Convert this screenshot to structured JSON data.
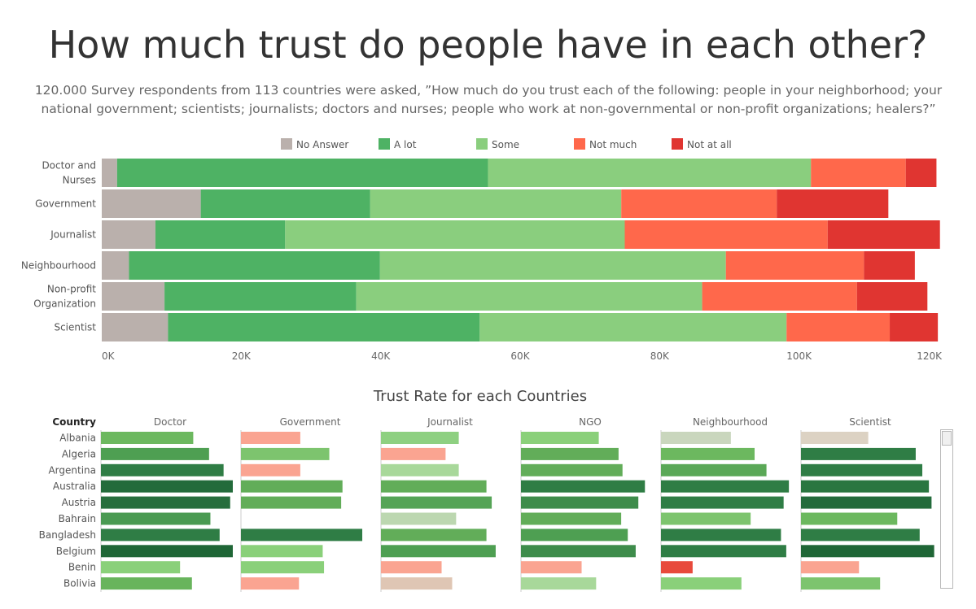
{
  "page": {
    "title": "How much trust do people have in each other?",
    "subtitle": "120.000 Survey respondents from 113 countries were asked, ”How much do you trust each of the following: people in your neighborhood; your national government; scientists; journalists; doctors and nurses; people who work at non-governmental or non-profit organizations; healers?”"
  },
  "chart_data": [
    {
      "type": "bar",
      "orientation": "horizontal",
      "stacked": true,
      "categories": [
        [
          "Doctor and",
          "Nurses"
        ],
        [
          "Government"
        ],
        [
          "Journalist"
        ],
        [
          "Neighbourhood"
        ],
        [
          "Non-profit",
          "Organization"
        ],
        [
          "Scientist"
        ]
      ],
      "series": [
        {
          "name": "No Answer",
          "color": "#bab0ac",
          "values": [
            2200,
            14200,
            7700,
            3900,
            9000,
            9500
          ]
        },
        {
          "name": "A lot",
          "color": "#4eb264",
          "values": [
            53200,
            24300,
            18600,
            36000,
            27500,
            44700
          ]
        },
        {
          "name": "Some",
          "color": "#8ace7e",
          "values": [
            46300,
            36000,
            48700,
            49600,
            49600,
            44000
          ]
        },
        {
          "name": "Not much",
          "color": "#ff684b",
          "values": [
            13600,
            22300,
            29100,
            19800,
            22200,
            14800
          ]
        },
        {
          "name": "Not at all",
          "color": "#e03531",
          "values": [
            4400,
            16000,
            16100,
            7300,
            10100,
            6900
          ]
        }
      ],
      "xlim": [
        0,
        120000
      ],
      "xticks": [
        "0K",
        "20K",
        "40K",
        "60K",
        "80K",
        "100K",
        "120K"
      ],
      "legend_position": "top"
    },
    {
      "type": "bar",
      "orientation": "horizontal",
      "title": "Trust Rate for each Countries",
      "row_header": "Country",
      "countries": [
        "Albania",
        "Algeria",
        "Argentina",
        "Australia",
        "Austria",
        "Bahrain",
        "Bangladesh",
        "Belgium",
        "Benin",
        "Bolivia"
      ],
      "columns": [
        {
          "name": "Doctor",
          "values": [
            0.7,
            0.82,
            0.93,
            1.0,
            0.98,
            0.83,
            0.9,
            1.0,
            0.6,
            0.69
          ],
          "colors": [
            "#6cb85f",
            "#4e9f52",
            "#2f7d45",
            "#236b3b",
            "#276e3d",
            "#4a9a52",
            "#2f7d45",
            "#1f6636",
            "#8ad07a",
            "#68b45c"
          ]
        },
        {
          "name": "Government",
          "values": [
            0.45,
            0.67,
            0.45,
            0.77,
            0.76,
            0,
            0.92,
            0.62,
            0.63,
            0.44
          ],
          "colors": [
            "#faa491",
            "#7dc46e",
            "#faa491",
            "#62ad59",
            "#62ad59",
            "",
            "#2f7d45",
            "#8ad07a",
            "#8ad07a",
            "#faa491"
          ]
        },
        {
          "name": "Journalist",
          "values": [
            0.59,
            0.49,
            0.59,
            0.8,
            0.84,
            0.57,
            0.8,
            0.87,
            0.46,
            0.54
          ],
          "colors": [
            "#8ed081",
            "#faa491",
            "#a8d89a",
            "#62ad59",
            "#55a456",
            "#bcd7b0",
            "#62ad59",
            "#4e9f52",
            "#faa491",
            "#dfc6b4"
          ]
        },
        {
          "name": "NGO",
          "values": [
            0.59,
            0.74,
            0.77,
            0.94,
            0.89,
            0.76,
            0.81,
            0.87,
            0.46,
            0.57
          ],
          "colors": [
            "#8ad07a",
            "#62ad59",
            "#62ad59",
            "#2f7d45",
            "#3e8c4b",
            "#62ad59",
            "#4e9f52",
            "#3e8c4b",
            "#faa491",
            "#a8d89a"
          ]
        },
        {
          "name": "Neighbourhood",
          "values": [
            0.53,
            0.71,
            0.8,
            0.97,
            0.93,
            0.68,
            0.91,
            0.95,
            0.24,
            0.61
          ],
          "colors": [
            "#c9d6bd",
            "#6cb85f",
            "#5aa857",
            "#2f7d45",
            "#2f7d45",
            "#7dc46e",
            "#2f7d45",
            "#2f7d45",
            "#e84a3c",
            "#8ad07a"
          ]
        },
        {
          "name": "Scientist",
          "values": [
            0.51,
            0.87,
            0.92,
            0.97,
            0.99,
            0.73,
            0.9,
            1.01,
            0.44,
            0.6
          ],
          "colors": [
            "#dcd2c3",
            "#2f7d45",
            "#2f7d45",
            "#2a7640",
            "#236b3b",
            "#6cb85f",
            "#2f7d45",
            "#1f6636",
            "#faa491",
            "#7dc46e"
          ]
        }
      ]
    }
  ]
}
